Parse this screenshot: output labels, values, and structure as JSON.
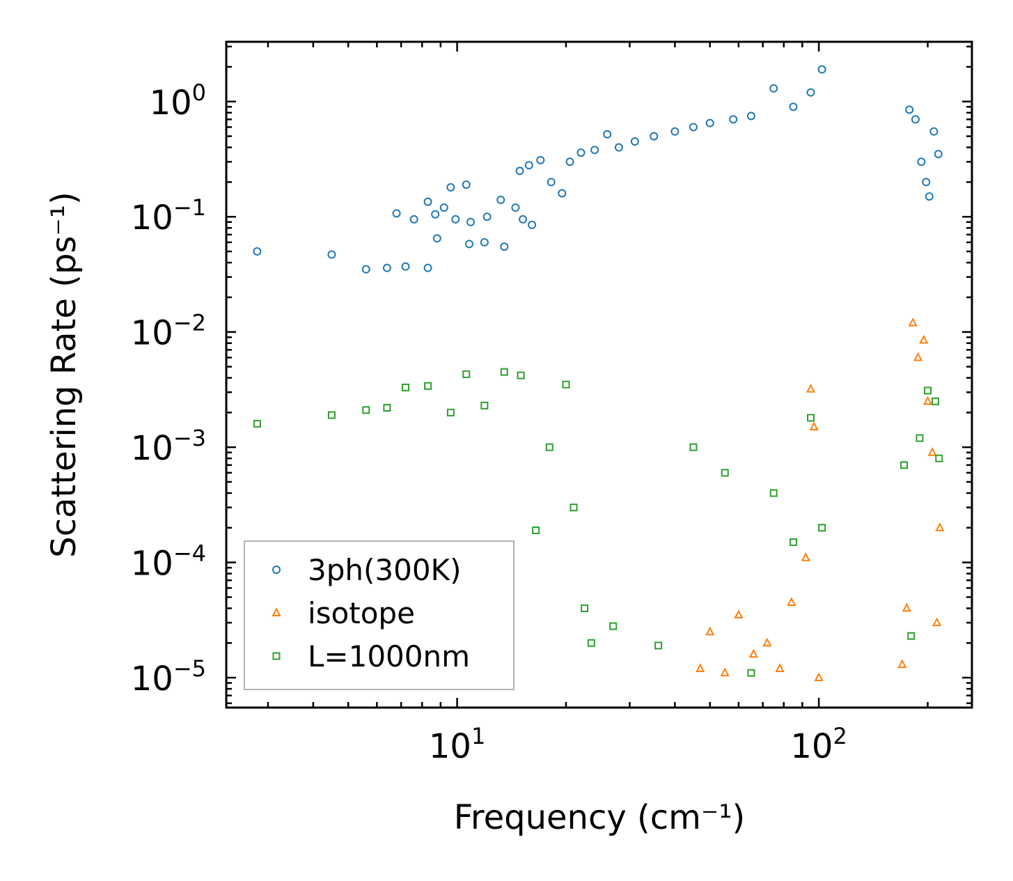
{
  "chart_data": {
    "type": "scatter",
    "title": "",
    "xlabel": "Frequency (cm⁻¹)",
    "ylabel": "Scattering Rate (ps⁻¹)",
    "xscale": "log",
    "yscale": "log",
    "xlim": [
      2.3,
      265
    ],
    "ylim": [
      5.5e-06,
      3.3
    ],
    "x_ticks": [
      {
        "value": 10,
        "base": "10",
        "exp": "1"
      },
      {
        "value": 100,
        "base": "10",
        "exp": "2"
      }
    ],
    "y_ticks": [
      {
        "value": 1,
        "base": "10",
        "exp": "0"
      },
      {
        "value": 0.1,
        "base": "10",
        "exp": "−1"
      },
      {
        "value": 0.01,
        "base": "10",
        "exp": "−2"
      },
      {
        "value": 0.001,
        "base": "10",
        "exp": "−3"
      },
      {
        "value": 0.0001,
        "base": "10",
        "exp": "−4"
      },
      {
        "value": 1e-05,
        "base": "10",
        "exp": "−5"
      }
    ],
    "legend_position": "lower-left",
    "series": [
      {
        "name": "3ph(300K)",
        "marker": "circle",
        "color": "#1f77b4",
        "points": [
          [
            2.8,
            0.05
          ],
          [
            4.5,
            0.047
          ],
          [
            5.6,
            0.035
          ],
          [
            6.4,
            0.036
          ],
          [
            7.2,
            0.037
          ],
          [
            8.3,
            0.036
          ],
          [
            6.8,
            0.107
          ],
          [
            7.6,
            0.095
          ],
          [
            8.3,
            0.135
          ],
          [
            8.8,
            0.065
          ],
          [
            9.6,
            0.18
          ],
          [
            10.6,
            0.19
          ],
          [
            10.8,
            0.058
          ],
          [
            11.9,
            0.06
          ],
          [
            13.5,
            0.055
          ],
          [
            9.2,
            0.12
          ],
          [
            9.9,
            0.095
          ],
          [
            8.7,
            0.105
          ],
          [
            10.9,
            0.09
          ],
          [
            12.1,
            0.1
          ],
          [
            13.2,
            0.14
          ],
          [
            14.5,
            0.12
          ],
          [
            15.2,
            0.095
          ],
          [
            16.1,
            0.085
          ],
          [
            14.9,
            0.25
          ],
          [
            15.8,
            0.28
          ],
          [
            17.0,
            0.31
          ],
          [
            18.2,
            0.2
          ],
          [
            19.5,
            0.16
          ],
          [
            20.5,
            0.3
          ],
          [
            22.0,
            0.36
          ],
          [
            24.0,
            0.38
          ],
          [
            26.0,
            0.52
          ],
          [
            28.0,
            0.4
          ],
          [
            31.0,
            0.45
          ],
          [
            35.0,
            0.5
          ],
          [
            40.0,
            0.55
          ],
          [
            45.0,
            0.6
          ],
          [
            50.0,
            0.65
          ],
          [
            58.0,
            0.7
          ],
          [
            65.0,
            0.75
          ],
          [
            75.0,
            1.3
          ],
          [
            85.0,
            0.9
          ],
          [
            95.0,
            1.2
          ],
          [
            102.0,
            1.9
          ],
          [
            178.0,
            0.85
          ],
          [
            185.0,
            0.7
          ],
          [
            192.0,
            0.3
          ],
          [
            198.0,
            0.2
          ],
          [
            202.0,
            0.15
          ],
          [
            208.0,
            0.55
          ],
          [
            214.0,
            0.35
          ]
        ]
      },
      {
        "name": "isotope",
        "marker": "triangle",
        "color": "#ff7f0e",
        "points": [
          [
            47.0,
            1.2e-05
          ],
          [
            50.0,
            2.5e-05
          ],
          [
            55.0,
            1.1e-05
          ],
          [
            60.0,
            3.5e-05
          ],
          [
            66.0,
            1.6e-05
          ],
          [
            72.0,
            2e-05
          ],
          [
            78.0,
            1.2e-05
          ],
          [
            84.0,
            4.5e-05
          ],
          [
            92.0,
            0.00011
          ],
          [
            95.0,
            0.0032
          ],
          [
            97.0,
            0.0015
          ],
          [
            100.0,
            1e-05
          ],
          [
            170.0,
            1.3e-05
          ],
          [
            175.0,
            4e-05
          ],
          [
            182.0,
            0.012
          ],
          [
            188.0,
            0.006
          ],
          [
            195.0,
            0.0085
          ],
          [
            200.0,
            0.0025
          ],
          [
            206.0,
            0.0009
          ],
          [
            212.0,
            3e-05
          ],
          [
            216.0,
            0.0002
          ]
        ]
      },
      {
        "name": "L=1000nm",
        "marker": "square",
        "color": "#2ca02c",
        "points": [
          [
            2.8,
            0.0016
          ],
          [
            4.5,
            0.0019
          ],
          [
            5.6,
            0.0021
          ],
          [
            6.4,
            0.0022
          ],
          [
            7.2,
            0.0033
          ],
          [
            8.3,
            0.0034
          ],
          [
            9.6,
            0.002
          ],
          [
            10.6,
            0.0043
          ],
          [
            11.9,
            0.0023
          ],
          [
            13.5,
            0.0045
          ],
          [
            15.0,
            0.0042
          ],
          [
            16.5,
            0.00019
          ],
          [
            18.0,
            0.001
          ],
          [
            20.0,
            0.0035
          ],
          [
            21.0,
            0.0003
          ],
          [
            22.5,
            4e-05
          ],
          [
            23.5,
            2e-05
          ],
          [
            27.0,
            2.8e-05
          ],
          [
            36.0,
            1.9e-05
          ],
          [
            45.0,
            0.001
          ],
          [
            55.0,
            0.0006
          ],
          [
            65.0,
            1.1e-05
          ],
          [
            75.0,
            0.0004
          ],
          [
            85.0,
            0.00015
          ],
          [
            95.0,
            0.0018
          ],
          [
            102.0,
            0.0002
          ],
          [
            172.0,
            0.0007
          ],
          [
            180.0,
            2.3e-05
          ],
          [
            190.0,
            0.0012
          ],
          [
            200.0,
            0.0031
          ],
          [
            210.0,
            0.0025
          ],
          [
            215.0,
            0.0008
          ]
        ]
      }
    ]
  }
}
